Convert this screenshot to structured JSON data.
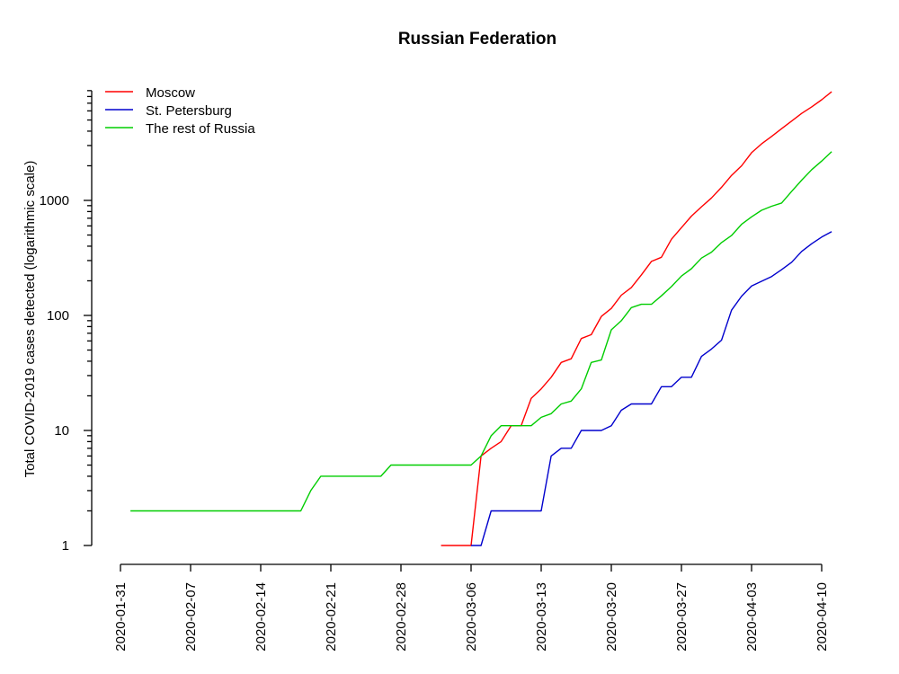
{
  "chart_data": {
    "type": "line",
    "title": "Russian Federation",
    "xlabel": "",
    "ylabel": "Total COVID-2019 cases detected (logarithmic scale)",
    "y_scale": "log",
    "ylim": [
      1,
      9000
    ],
    "xlim": [
      "2020-01-31",
      "2020-04-10"
    ],
    "x_tick_labels": [
      "2020-01-31",
      "2020-02-07",
      "2020-02-14",
      "2020-02-21",
      "2020-02-28",
      "2020-03-06",
      "2020-03-13",
      "2020-03-20",
      "2020-03-27",
      "2020-04-03",
      "2020-04-10"
    ],
    "y_tick_labels": [
      "1",
      "10",
      "100",
      "1000"
    ],
    "y_major_ticks": [
      1,
      10,
      100,
      1000
    ],
    "y_minor_ticks": [
      2,
      3,
      4,
      5,
      6,
      7,
      8,
      9,
      20,
      30,
      40,
      50,
      60,
      70,
      80,
      90,
      200,
      300,
      400,
      500,
      600,
      700,
      800,
      900,
      2000,
      3000,
      4000,
      5000,
      6000,
      7000,
      8000,
      9000
    ],
    "grid": false,
    "legend": "top-left",
    "series": [
      {
        "name": "Moscow",
        "color": "#ff0000",
        "points": [
          [
            "2020-03-03",
            1
          ],
          [
            "2020-03-04",
            1
          ],
          [
            "2020-03-05",
            1
          ],
          [
            "2020-03-06",
            1
          ],
          [
            "2020-03-07",
            6
          ],
          [
            "2020-03-08",
            7
          ],
          [
            "2020-03-09",
            8
          ],
          [
            "2020-03-10",
            11
          ],
          [
            "2020-03-11",
            11
          ],
          [
            "2020-03-12",
            19
          ],
          [
            "2020-03-13",
            23
          ],
          [
            "2020-03-14",
            29
          ],
          [
            "2020-03-15",
            39
          ],
          [
            "2020-03-16",
            42
          ],
          [
            "2020-03-17",
            63
          ],
          [
            "2020-03-18",
            68
          ],
          [
            "2020-03-19",
            98
          ],
          [
            "2020-03-20",
            115
          ],
          [
            "2020-03-21",
            150
          ],
          [
            "2020-03-22",
            175
          ],
          [
            "2020-03-23",
            225
          ],
          [
            "2020-03-24",
            295
          ],
          [
            "2020-03-25",
            320
          ],
          [
            "2020-03-26",
            460
          ],
          [
            "2020-03-27",
            580
          ],
          [
            "2020-03-28",
            730
          ],
          [
            "2020-03-29",
            880
          ],
          [
            "2020-03-30",
            1050
          ],
          [
            "2020-03-31",
            1300
          ],
          [
            "2020-04-01",
            1650
          ],
          [
            "2020-04-02",
            2000
          ],
          [
            "2020-04-03",
            2600
          ],
          [
            "2020-04-04",
            3100
          ],
          [
            "2020-04-05",
            3600
          ],
          [
            "2020-04-06",
            4200
          ],
          [
            "2020-04-07",
            4900
          ],
          [
            "2020-04-08",
            5700
          ],
          [
            "2020-04-09",
            6500
          ],
          [
            "2020-04-10",
            7500
          ],
          [
            "2020-04-11",
            8800
          ]
        ]
      },
      {
        "name": "St. Petersburg",
        "color": "#0000cd",
        "points": [
          [
            "2020-03-06",
            1
          ],
          [
            "2020-03-07",
            1
          ],
          [
            "2020-03-08",
            2
          ],
          [
            "2020-03-09",
            2
          ],
          [
            "2020-03-10",
            2
          ],
          [
            "2020-03-11",
            2
          ],
          [
            "2020-03-12",
            2
          ],
          [
            "2020-03-13",
            2
          ],
          [
            "2020-03-14",
            6
          ],
          [
            "2020-03-15",
            7
          ],
          [
            "2020-03-16",
            7
          ],
          [
            "2020-03-17",
            10
          ],
          [
            "2020-03-18",
            10
          ],
          [
            "2020-03-19",
            10
          ],
          [
            "2020-03-20",
            11
          ],
          [
            "2020-03-21",
            15
          ],
          [
            "2020-03-22",
            17
          ],
          [
            "2020-03-23",
            17
          ],
          [
            "2020-03-24",
            17
          ],
          [
            "2020-03-25",
            24
          ],
          [
            "2020-03-26",
            24
          ],
          [
            "2020-03-27",
            29
          ],
          [
            "2020-03-28",
            29
          ],
          [
            "2020-03-29",
            44
          ],
          [
            "2020-03-30",
            51
          ],
          [
            "2020-03-31",
            61
          ],
          [
            "2020-04-01",
            111
          ],
          [
            "2020-04-02",
            147
          ],
          [
            "2020-04-03",
            180
          ],
          [
            "2020-04-04",
            198
          ],
          [
            "2020-04-05",
            218
          ],
          [
            "2020-04-06",
            250
          ],
          [
            "2020-04-07",
            290
          ],
          [
            "2020-04-08",
            360
          ],
          [
            "2020-04-09",
            420
          ],
          [
            "2020-04-10",
            480
          ],
          [
            "2020-04-11",
            535
          ]
        ]
      },
      {
        "name": "The rest of Russia",
        "color": "#00cd00",
        "points": [
          [
            "2020-02-01",
            2
          ],
          [
            "2020-02-18",
            2
          ],
          [
            "2020-02-19",
            3
          ],
          [
            "2020-02-20",
            4
          ],
          [
            "2020-02-26",
            4
          ],
          [
            "2020-02-27",
            5
          ],
          [
            "2020-03-06",
            5
          ],
          [
            "2020-03-07",
            6
          ],
          [
            "2020-03-08",
            9
          ],
          [
            "2020-03-09",
            11
          ],
          [
            "2020-03-10",
            11
          ],
          [
            "2020-03-11",
            11
          ],
          [
            "2020-03-12",
            11
          ],
          [
            "2020-03-13",
            13
          ],
          [
            "2020-03-14",
            14
          ],
          [
            "2020-03-15",
            17
          ],
          [
            "2020-03-16",
            18
          ],
          [
            "2020-03-17",
            23
          ],
          [
            "2020-03-18",
            39
          ],
          [
            "2020-03-19",
            41
          ],
          [
            "2020-03-20",
            75
          ],
          [
            "2020-03-21",
            90
          ],
          [
            "2020-03-22",
            117
          ],
          [
            "2020-03-23",
            125
          ],
          [
            "2020-03-24",
            125
          ],
          [
            "2020-03-25",
            148
          ],
          [
            "2020-03-26",
            178
          ],
          [
            "2020-03-27",
            220
          ],
          [
            "2020-03-28",
            255
          ],
          [
            "2020-03-29",
            315
          ],
          [
            "2020-03-30",
            355
          ],
          [
            "2020-03-31",
            430
          ],
          [
            "2020-04-01",
            495
          ],
          [
            "2020-04-02",
            620
          ],
          [
            "2020-04-03",
            720
          ],
          [
            "2020-04-04",
            820
          ],
          [
            "2020-04-05",
            890
          ],
          [
            "2020-04-06",
            950
          ],
          [
            "2020-04-07",
            1200
          ],
          [
            "2020-04-08",
            1500
          ],
          [
            "2020-04-09",
            1850
          ],
          [
            "2020-04-10",
            2200
          ],
          [
            "2020-04-11",
            2650
          ]
        ]
      }
    ]
  }
}
